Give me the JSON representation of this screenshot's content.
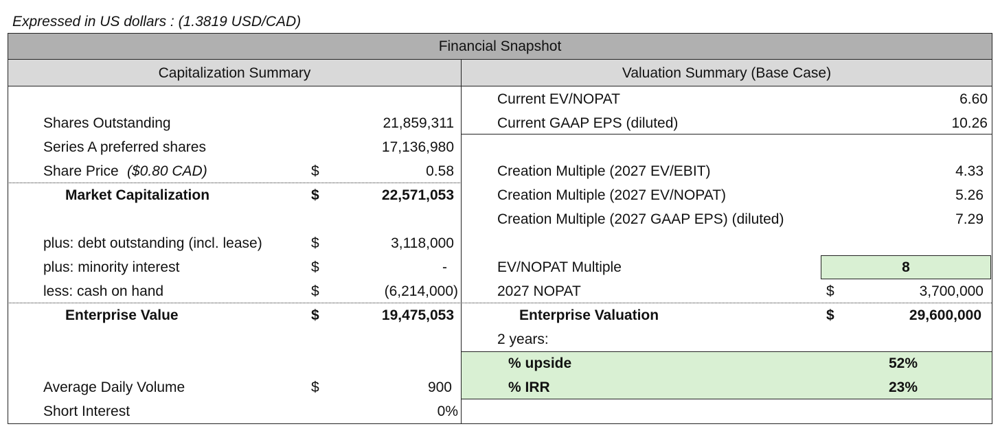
{
  "caption": "Expressed in US dollars : (1.3819 USD/CAD)",
  "title": "Financial Snapshot",
  "capitalization": {
    "header": "Capitalization Summary",
    "rows": [
      {
        "label": "Shares Outstanding",
        "value": "21,859,311"
      },
      {
        "label": "Series A preferred shares",
        "value": "17,136,980"
      },
      {
        "label": "Share Price",
        "note": "($0.80 CAD)",
        "currency": "$",
        "value": "0.58"
      },
      {
        "label": "Market Capitalization",
        "currency": "$",
        "value": "22,571,053"
      },
      {
        "label": "plus: debt outstanding (incl. lease)",
        "currency": "$",
        "value": "3,118,000"
      },
      {
        "label": "plus: minority interest",
        "currency": "$",
        "value": "-"
      },
      {
        "label": "less: cash on hand",
        "currency": "$",
        "value": "(6,214,000)"
      },
      {
        "label": "Enterprise Value",
        "currency": "$",
        "value": "19,475,053"
      },
      {
        "label": "Average Daily Volume",
        "currency": "$",
        "value": "900"
      },
      {
        "label": "Short Interest",
        "value": "0%"
      }
    ]
  },
  "valuation": {
    "header": "Valuation Summary (Base Case)",
    "rows": [
      {
        "label": "Current EV/NOPAT",
        "value": "6.60"
      },
      {
        "label": "Current GAAP EPS (diluted)",
        "value": "10.26"
      },
      {
        "label": "Creation Multiple (2027 EV/EBIT)",
        "value": "4.33"
      },
      {
        "label": "Creation Multiple (2027 EV/NOPAT)",
        "value": "5.26"
      },
      {
        "label": "Creation Multiple (2027 GAAP EPS) (diluted)",
        "value": "7.29"
      },
      {
        "label": "EV/NOPAT Multiple",
        "value": "8"
      },
      {
        "label": "2027 NOPAT",
        "currency": "$",
        "value": "3,700,000"
      },
      {
        "label": "Enterprise Valuation",
        "currency": "$",
        "value": "29,600,000"
      },
      {
        "label": "2 years:"
      },
      {
        "label": "% upside",
        "value": "52%"
      },
      {
        "label": "% IRR",
        "value": "23%"
      }
    ]
  }
}
